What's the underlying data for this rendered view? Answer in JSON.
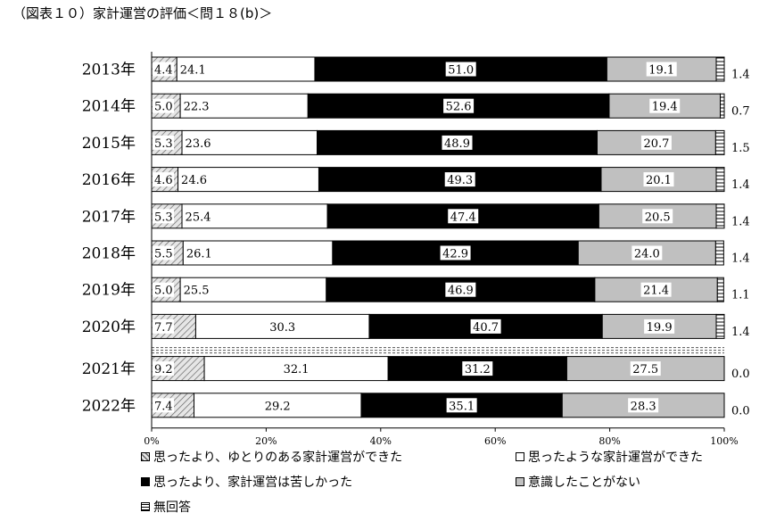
{
  "title": "（図表１０）家計運営の評価＜問１８(b)＞",
  "chart_data": {
    "type": "bar",
    "orientation": "horizontal-stacked-100",
    "categories": [
      "2013年",
      "2014年",
      "2015年",
      "2016年",
      "2017年",
      "2018年",
      "2019年",
      "2020年",
      "2021年",
      "2022年"
    ],
    "series": [
      {
        "name": "思ったより、ゆとりのある家計運営ができた",
        "values": [
          4.4,
          5.0,
          5.3,
          4.6,
          5.3,
          5.5,
          5.0,
          7.7,
          9.2,
          7.4
        ]
      },
      {
        "name": "思ったような家計運営ができた",
        "values": [
          24.1,
          22.3,
          23.6,
          24.6,
          25.4,
          26.1,
          25.5,
          30.3,
          32.1,
          29.2
        ]
      },
      {
        "name": "思ったより、家計運営は苦しかった",
        "values": [
          51.0,
          52.6,
          48.9,
          49.3,
          47.4,
          42.9,
          46.9,
          40.7,
          31.2,
          35.1
        ]
      },
      {
        "name": "意識したことがない",
        "values": [
          19.1,
          19.4,
          20.7,
          20.1,
          20.5,
          24.0,
          21.4,
          19.9,
          27.5,
          28.3
        ]
      },
      {
        "name": "無回答",
        "values": [
          1.4,
          0.7,
          1.5,
          1.4,
          1.4,
          1.4,
          1.1,
          1.4,
          0.0,
          0.0
        ]
      }
    ],
    "xlim": [
      0,
      100
    ],
    "x_ticks": [
      "0%",
      "20%",
      "40%",
      "60%",
      "80%",
      "100%"
    ],
    "legend_position": "bottom",
    "colors": {
      "series1": "#cfcfcf",
      "series2": "#ffffff",
      "series3": "#000000",
      "series4": "#c0c0c0",
      "series5": "#ffffff"
    }
  }
}
